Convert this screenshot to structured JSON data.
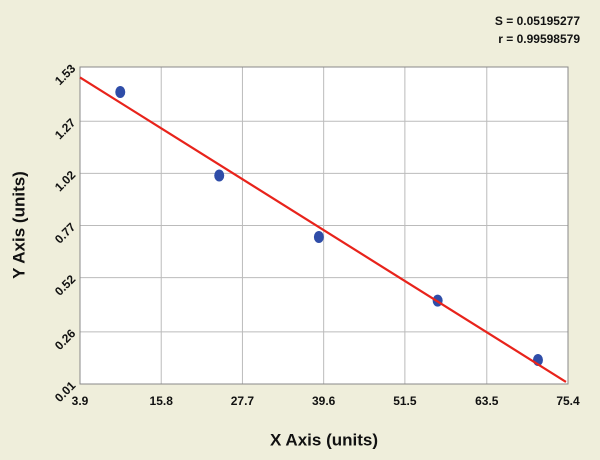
{
  "chart_data": {
    "type": "scatter",
    "annotations": [
      "S = 0.05195277",
      "r = 0.99598579"
    ],
    "x_label": "X Axis (units)",
    "y_label": "Y Axis (units)",
    "series": [
      {
        "name": null,
        "color": "#2f4da8",
        "x": [
          9.8,
          24.3,
          38.9,
          56.3,
          71.0
        ],
        "values": [
          1.41,
          1.01,
          0.715,
          0.41,
          0.125
        ]
      }
    ],
    "fit_line": {
      "color": "#e8231b",
      "x": [
        3.9,
        75.1
      ],
      "values": [
        1.48,
        0.02
      ]
    },
    "xlim": [
      3.9,
      75.4
    ],
    "xticks": [
      3.9,
      15.8,
      27.7,
      39.6,
      51.5,
      63.5,
      75.4
    ],
    "ylim": [
      0.01,
      1.53
    ],
    "yticks": [
      0.01,
      0.26,
      0.52,
      0.77,
      1.02,
      1.27,
      1.53
    ],
    "grid": true
  }
}
